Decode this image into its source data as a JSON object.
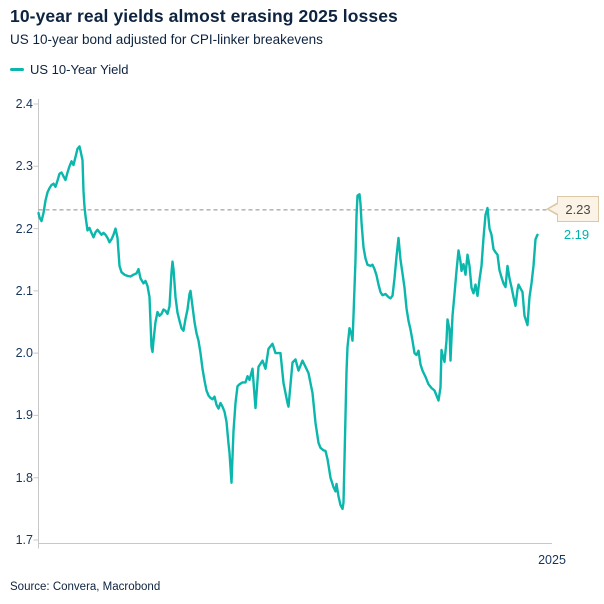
{
  "header": {
    "title": "10-year real yields almost erasing 2025 losses",
    "subtitle": "US 10-year bond adjusted for CPI-linker breakevens"
  },
  "legend": {
    "label": "US 10-Year Yield"
  },
  "footer": {
    "source": "Source: Convera, Macrobond"
  },
  "colors": {
    "line": "#0bb7ac",
    "navy": "#0d2340",
    "axis": "#c8c8c8",
    "dash": "#8c8c8c",
    "callout_bg": "#faf3e6",
    "callout_border": "#dbc9a6",
    "callout_text": "#4a4a4a",
    "last_value_text": "#00b2a9"
  },
  "chart_data": {
    "type": "line",
    "title": "10-year real yields almost erasing 2025 losses",
    "subtitle": "US 10-year bond adjusted for CPI-linker breakevens",
    "xlabel": "2025",
    "ylabel": "",
    "ylim": [
      1.7,
      2.4
    ],
    "yticks": [
      "2.4",
      "2.3",
      "2.2",
      "2.1",
      "2.0",
      "1.9",
      "1.8",
      "1.7"
    ],
    "grid": false,
    "legend_position": "top-left",
    "reference_line": {
      "value": 2.23,
      "label": "2.23"
    },
    "last_point_label": "2.19",
    "x_unit": "plot-px offset (0 = left axis, 499 = most recent observation)",
    "series": [
      {
        "name": "US 10-Year Yield",
        "points": [
          [
            0,
            2.225
          ],
          [
            1,
            2.218
          ],
          [
            3,
            2.212
          ],
          [
            5,
            2.225
          ],
          [
            7,
            2.245
          ],
          [
            9,
            2.258
          ],
          [
            11,
            2.265
          ],
          [
            13,
            2.27
          ],
          [
            15,
            2.272
          ],
          [
            17,
            2.267
          ],
          [
            19,
            2.277
          ],
          [
            21,
            2.288
          ],
          [
            23,
            2.29
          ],
          [
            25,
            2.284
          ],
          [
            27,
            2.278
          ],
          [
            29,
            2.29
          ],
          [
            31,
            2.3
          ],
          [
            33,
            2.308
          ],
          [
            35,
            2.302
          ],
          [
            37,
            2.315
          ],
          [
            39,
            2.328
          ],
          [
            41,
            2.332
          ],
          [
            42,
            2.325
          ],
          [
            44,
            2.31
          ],
          [
            45,
            2.26
          ],
          [
            46,
            2.235
          ],
          [
            47,
            2.22
          ],
          [
            49,
            2.197
          ],
          [
            51,
            2.201
          ],
          [
            53,
            2.193
          ],
          [
            55,
            2.186
          ],
          [
            57,
            2.194
          ],
          [
            59,
            2.198
          ],
          [
            61,
            2.194
          ],
          [
            63,
            2.19
          ],
          [
            65,
            2.193
          ],
          [
            67,
            2.19
          ],
          [
            69,
            2.185
          ],
          [
            71,
            2.178
          ],
          [
            73,
            2.183
          ],
          [
            75,
            2.19
          ],
          [
            77,
            2.2
          ],
          [
            79,
            2.185
          ],
          [
            81,
            2.14
          ],
          [
            83,
            2.13
          ],
          [
            86,
            2.126
          ],
          [
            89,
            2.124
          ],
          [
            92,
            2.123
          ],
          [
            95,
            2.126
          ],
          [
            98,
            2.128
          ],
          [
            100,
            2.135
          ],
          [
            102,
            2.12
          ],
          [
            105,
            2.112
          ],
          [
            107,
            2.116
          ],
          [
            109,
            2.108
          ],
          [
            111,
            2.09
          ],
          [
            113,
            2.01
          ],
          [
            114,
            2.002
          ],
          [
            115,
            2.02
          ],
          [
            117,
            2.05
          ],
          [
            119,
            2.066
          ],
          [
            121,
            2.06
          ],
          [
            123,
            2.063
          ],
          [
            125,
            2.07
          ],
          [
            127,
            2.068
          ],
          [
            129,
            2.063
          ],
          [
            131,
            2.075
          ],
          [
            133,
            2.13
          ],
          [
            134,
            2.147
          ],
          [
            135,
            2.135
          ],
          [
            137,
            2.09
          ],
          [
            139,
            2.065
          ],
          [
            141,
            2.052
          ],
          [
            143,
            2.04
          ],
          [
            145,
            2.036
          ],
          [
            147,
            2.055
          ],
          [
            149,
            2.07
          ],
          [
            151,
            2.095
          ],
          [
            152,
            2.1
          ],
          [
            154,
            2.075
          ],
          [
            156,
            2.05
          ],
          [
            158,
            2.032
          ],
          [
            160,
            2.02
          ],
          [
            162,
            2.0
          ],
          [
            164,
            1.975
          ],
          [
            166,
            1.956
          ],
          [
            168,
            1.94
          ],
          [
            170,
            1.932
          ],
          [
            172,
            1.928
          ],
          [
            174,
            1.926
          ],
          [
            176,
            1.93
          ],
          [
            178,
            1.917
          ],
          [
            180,
            1.911
          ],
          [
            182,
            1.92
          ],
          [
            184,
            1.914
          ],
          [
            186,
            1.906
          ],
          [
            188,
            1.89
          ],
          [
            190,
            1.855
          ],
          [
            191,
            1.84
          ],
          [
            193,
            1.792
          ],
          [
            195,
            1.875
          ],
          [
            197,
            1.92
          ],
          [
            199,
            1.947
          ],
          [
            201,
            1.95
          ],
          [
            204,
            1.953
          ],
          [
            207,
            1.953
          ],
          [
            209,
            1.963
          ],
          [
            211,
            1.957
          ],
          [
            214,
            1.975
          ],
          [
            217,
            1.912
          ],
          [
            220,
            1.978
          ],
          [
            224,
            1.988
          ],
          [
            227,
            1.975
          ],
          [
            230,
            2.007
          ],
          [
            234,
            2.015
          ],
          [
            237,
            2.0
          ],
          [
            240,
            2.0
          ],
          [
            242,
            2.0
          ],
          [
            245,
            1.952
          ],
          [
            249,
            1.92
          ],
          [
            250,
            1.914
          ],
          [
            254,
            1.985
          ],
          [
            257,
            1.99
          ],
          [
            260,
            1.972
          ],
          [
            264,
            1.988
          ],
          [
            267,
            1.978
          ],
          [
            270,
            1.968
          ],
          [
            274,
            1.936
          ],
          [
            277,
            1.888
          ],
          [
            280,
            1.856
          ],
          [
            282,
            1.848
          ],
          [
            285,
            1.844
          ],
          [
            287,
            1.843
          ],
          [
            289,
            1.83
          ],
          [
            292,
            1.8
          ],
          [
            295,
            1.785
          ],
          [
            297,
            1.778
          ],
          [
            298,
            1.79
          ],
          [
            300,
            1.77
          ],
          [
            302,
            1.756
          ],
          [
            304,
            1.75
          ],
          [
            305,
            1.76
          ],
          [
            306,
            1.83
          ],
          [
            307,
            1.9
          ],
          [
            308,
            1.97
          ],
          [
            309,
            2.01
          ],
          [
            311,
            2.04
          ],
          [
            313,
            2.03
          ],
          [
            314,
            2.02
          ],
          [
            315,
            2.06
          ],
          [
            317,
            2.15
          ],
          [
            318,
            2.22
          ],
          [
            319,
            2.253
          ],
          [
            321,
            2.255
          ],
          [
            322,
            2.24
          ],
          [
            323,
            2.21
          ],
          [
            325,
            2.17
          ],
          [
            327,
            2.152
          ],
          [
            329,
            2.142
          ],
          [
            332,
            2.14
          ],
          [
            334,
            2.142
          ],
          [
            336,
            2.135
          ],
          [
            338,
            2.125
          ],
          [
            340,
            2.11
          ],
          [
            342,
            2.098
          ],
          [
            344,
            2.093
          ],
          [
            347,
            2.095
          ],
          [
            350,
            2.09
          ],
          [
            352,
            2.088
          ],
          [
            354,
            2.092
          ],
          [
            356,
            2.12
          ],
          [
            358,
            2.155
          ],
          [
            360,
            2.185
          ],
          [
            362,
            2.15
          ],
          [
            364,
            2.128
          ],
          [
            366,
            2.105
          ],
          [
            368,
            2.072
          ],
          [
            370,
            2.052
          ],
          [
            372,
            2.038
          ],
          [
            374,
            2.02
          ],
          [
            376,
            2.0
          ],
          [
            378,
            1.997
          ],
          [
            380,
            2.004
          ],
          [
            382,
            1.982
          ],
          [
            384,
            1.972
          ],
          [
            387,
            1.962
          ],
          [
            390,
            1.95
          ],
          [
            393,
            1.944
          ],
          [
            396,
            1.94
          ],
          [
            398,
            1.932
          ],
          [
            400,
            1.924
          ],
          [
            402,
            1.945
          ],
          [
            403,
            2.005
          ],
          [
            404,
            1.998
          ],
          [
            406,
            1.986
          ],
          [
            408,
            2.02
          ],
          [
            409,
            2.054
          ],
          [
            411,
            2.038
          ],
          [
            412,
            1.988
          ],
          [
            414,
            2.06
          ],
          [
            416,
            2.095
          ],
          [
            418,
            2.132
          ],
          [
            420,
            2.165
          ],
          [
            422,
            2.147
          ],
          [
            423,
            2.132
          ],
          [
            425,
            2.143
          ],
          [
            427,
            2.126
          ],
          [
            429,
            2.158
          ],
          [
            431,
            2.14
          ],
          [
            433,
            2.105
          ],
          [
            435,
            2.096
          ],
          [
            437,
            2.11
          ],
          [
            439,
            2.092
          ],
          [
            441,
            2.118
          ],
          [
            443,
            2.14
          ],
          [
            445,
            2.185
          ],
          [
            447,
            2.222
          ],
          [
            449,
            2.233
          ],
          [
            451,
            2.2
          ],
          [
            453,
            2.19
          ],
          [
            455,
            2.167
          ],
          [
            457,
            2.162
          ],
          [
            459,
            2.158
          ],
          [
            461,
            2.133
          ],
          [
            463,
            2.122
          ],
          [
            465,
            2.112
          ],
          [
            467,
            2.106
          ],
          [
            469,
            2.14
          ],
          [
            471,
            2.12
          ],
          [
            473,
            2.106
          ],
          [
            475,
            2.09
          ],
          [
            477,
            2.076
          ],
          [
            479,
            2.102
          ],
          [
            480,
            2.11
          ],
          [
            482,
            2.104
          ],
          [
            484,
            2.098
          ],
          [
            486,
            2.06
          ],
          [
            488,
            2.05
          ],
          [
            489,
            2.045
          ],
          [
            491,
            2.09
          ],
          [
            493,
            2.112
          ],
          [
            495,
            2.14
          ],
          [
            497,
            2.183
          ],
          [
            499,
            2.19
          ]
        ]
      }
    ]
  }
}
